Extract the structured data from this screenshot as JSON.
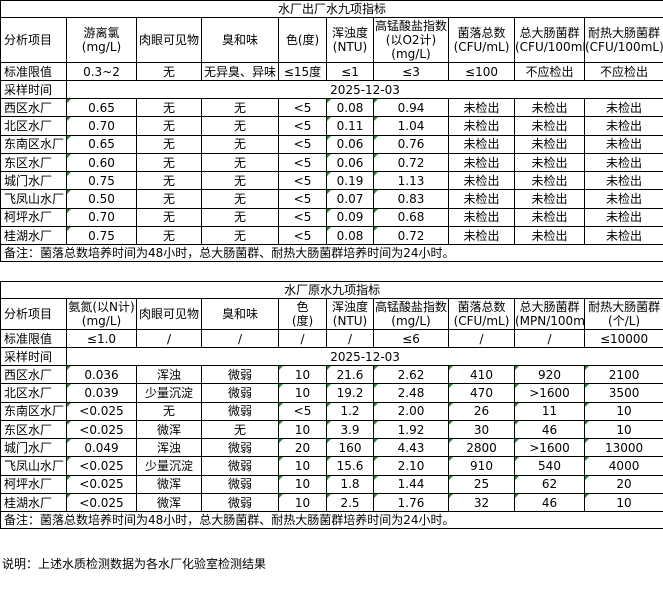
{
  "table1": {
    "title": "水厂出厂水九项指标",
    "headers": [
      "分析项目",
      "游离氯\n(mg/L)",
      "肉眼可见物",
      "臭和味",
      "色(度)",
      "浑浊度\n(NTU)",
      "高锰酸盐指数\n(以O2计)\n(mg/L)",
      "菌落总数\n(CFU/mL)",
      "总大肠菌群\n(CFU/100mL)",
      "耐热大肠菌群\n(CFU/100mL)"
    ],
    "standard": [
      "标准限值",
      "0.3~2",
      "无",
      "无异臭、异味",
      "≤15度",
      "≤1",
      "≤3",
      "≤100",
      "不应检出",
      "不应检出"
    ],
    "sample_label": "采样时间",
    "sample_date": "2025-12-03",
    "rows": [
      [
        "西区水厂",
        "0.65",
        "无",
        "无",
        "<5",
        "0.08",
        "0.94",
        "未检出",
        "未检出",
        "未检出"
      ],
      [
        "北区水厂",
        "0.70",
        "无",
        "无",
        "<5",
        "0.11",
        "1.04",
        "未检出",
        "未检出",
        "未检出"
      ],
      [
        "东南区水厂",
        "0.65",
        "无",
        "无",
        "<5",
        "0.06",
        "0.76",
        "未检出",
        "未检出",
        "未检出"
      ],
      [
        "东区水厂",
        "0.60",
        "无",
        "无",
        "<5",
        "0.06",
        "0.72",
        "未检出",
        "未检出",
        "未检出"
      ],
      [
        "城门水厂",
        "0.75",
        "无",
        "无",
        "<5",
        "0.19",
        "1.13",
        "未检出",
        "未检出",
        "未检出"
      ],
      [
        "飞凤山水厂",
        "0.50",
        "无",
        "无",
        "<5",
        "0.07",
        "0.83",
        "未检出",
        "未检出",
        "未检出"
      ],
      [
        "柯坪水厂",
        "0.70",
        "无",
        "无",
        "<5",
        "0.09",
        "0.68",
        "未检出",
        "未检出",
        "未检出"
      ],
      [
        "桂湖水厂",
        "0.75",
        "无",
        "无",
        "<5",
        "0.08",
        "0.72",
        "未检出",
        "未检出",
        "未检出"
      ]
    ],
    "note": "备注：菌落总数培养时间为48小时，总大肠菌群、耐热大肠菌群培养时间为24小时。"
  },
  "table2": {
    "title": "水厂原水九项指标",
    "headers": [
      "分析项目",
      "氨氮(以N计)\n(mg/L)",
      "肉眼可见物",
      "臭和味",
      "色\n(度)",
      "浑浊度\n(NTU)",
      "高锰酸盐指数\n(mg/L)",
      "菌落总数\n(CFU/mL)",
      "总大肠菌群\n(MPN/100mL)",
      "耐热大肠菌群\n(个/L)"
    ],
    "standard": [
      "标准限值",
      "≤1.0",
      "/",
      "/",
      "/",
      "/",
      "≤6",
      "/",
      "/",
      "≤10000"
    ],
    "sample_label": "采样时间",
    "sample_date": "2025-12-03",
    "rows": [
      [
        "西区水厂",
        "0.036",
        "浑浊",
        "微弱",
        "10",
        "21.6",
        "2.62",
        "410",
        "920",
        "2100"
      ],
      [
        "北区水厂",
        "0.039",
        "少量沉淀",
        "微弱",
        "10",
        "19.2",
        "2.48",
        "470",
        ">1600",
        "3500"
      ],
      [
        "东南区水厂",
        "<0.025",
        "无",
        "微弱",
        "<5",
        "1.2",
        "2.00",
        "26",
        "11",
        "10"
      ],
      [
        "东区水厂",
        "<0.025",
        "微浑",
        "无",
        "10",
        "3.9",
        "1.92",
        "30",
        "46",
        "10"
      ],
      [
        "城门水厂",
        "0.049",
        "浑浊",
        "微弱",
        "20",
        "160",
        "4.43",
        "2800",
        ">1600",
        "13000"
      ],
      [
        "飞凤山水厂",
        "<0.025",
        "少量沉淀",
        "微弱",
        "10",
        "15.6",
        "2.10",
        "910",
        "540",
        "4000"
      ],
      [
        "柯坪水厂",
        "<0.025",
        "微浑",
        "微弱",
        "10",
        "1.8",
        "1.44",
        "25",
        "62",
        "20"
      ],
      [
        "桂湖水厂",
        "<0.025",
        "微浑",
        "微弱",
        "10",
        "2.5",
        "1.76",
        "32",
        "46",
        "10"
      ]
    ],
    "note": "备注：菌落总数培养时间为48小时，总大肠菌群、耐热大肠菌群培养时间为24小时。"
  },
  "footer_note": "说明：上述水质检测数据为各水厂化验室检测结果",
  "colors": {
    "cell_marker": "#1e8c3a"
  }
}
